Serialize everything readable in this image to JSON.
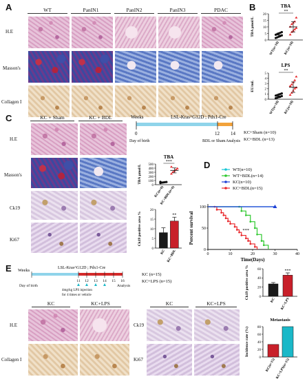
{
  "panel_letters": {
    "a": "A",
    "b": "B",
    "c": "C",
    "d": "D",
    "e": "E"
  },
  "panel_a": {
    "columns": [
      "WT",
      "PanIN1",
      "PanIN2",
      "PanIN3",
      "PDAC"
    ],
    "rows": [
      "H.E",
      "Masson's",
      "Collagen I"
    ]
  },
  "panel_c": {
    "columns": [
      "KC + Sham",
      "KC + BDL"
    ],
    "rows": [
      "H.E",
      "Masson's",
      "Ck19",
      "Ki67"
    ],
    "timeline": {
      "weeks": "Weeks",
      "strain": "LSL-Kras^G12D ; Pdx1-Cre",
      "t0": "0",
      "t12": "12",
      "t14": "14",
      "day_of_birth": "Day of birth",
      "bdl_or_sham": "BDL or Sham",
      "analysis": "Analysis",
      "group1": "KC+Sham (n=10)",
      "group2": "KC+BDL (n=13)"
    }
  },
  "panel_e": {
    "timeline": {
      "weeks": "Weeks",
      "strain": "LSL-Kras^G12D ; Pdx1-Cre",
      "ticks": [
        "11",
        "12",
        "13",
        "14",
        "15",
        "16"
      ],
      "day_of_birth": "Day of birth",
      "lps_line1": "4mg/kg LPS injection",
      "lps_line2": "for 4 times or vehicle",
      "analysis": "Analysis",
      "group1": "KC (n=15)",
      "group2": "KC+LPS (n=15)"
    },
    "left_columns": [
      "KC",
      "KC+LPS"
    ],
    "left_rows": [
      "H.E",
      "Collagen I"
    ],
    "right_columns": [
      "KC",
      "KC+LPS"
    ],
    "right_rows": [
      "Ck19",
      "Ki67"
    ]
  },
  "colors": {
    "red": "#e8262a",
    "green": "#2ec82e",
    "cyan": "#17c6d6",
    "blue": "#1d3fd6",
    "bar_black": "#1a1a1a",
    "bar_red": "#c8202a",
    "bar_cyan": "#1ab8c8"
  },
  "chart_data": [
    {
      "type": "scatter",
      "id": "B-TBA",
      "title": "TBA",
      "ylabel": "TBA μmol/L",
      "categories": [
        "WT(n=10)",
        "KC(n=10)"
      ],
      "significance": "**",
      "ylim": [
        0,
        20
      ],
      "yticks": [
        "0",
        "5",
        "10",
        "15",
        "20"
      ],
      "series": [
        {
          "values": [
            1.5,
            2,
            2.5,
            3,
            3.5,
            4,
            4.5,
            5,
            5.5,
            6
          ]
        },
        {
          "values": [
            4,
            6,
            7,
            8,
            9,
            10,
            12,
            13,
            14,
            17
          ]
        }
      ],
      "mean": [
        3.8,
        10
      ],
      "sd": [
        1.5,
        4
      ]
    },
    {
      "type": "scatter",
      "id": "B-LPS",
      "title": "LPS",
      "ylabel": "EU/mL",
      "categories": [
        "WT(n=10)",
        "KC(n=10)"
      ],
      "significance": "**",
      "ylim": [
        0,
        5
      ],
      "yticks": [
        "0",
        "1",
        "2",
        "3",
        "4",
        "5"
      ],
      "series": [
        {
          "values": [
            0.2,
            0.3,
            0.4,
            0.5,
            0.6,
            0.7,
            0.8,
            0.9,
            1.0,
            1.1
          ]
        },
        {
          "values": [
            0.8,
            1.2,
            1.6,
            2.0,
            2.2,
            2.5,
            2.8,
            3.2,
            3.6,
            4.3
          ]
        }
      ],
      "mean": [
        0.6,
        2.3
      ],
      "sd": [
        0.3,
        1
      ]
    },
    {
      "type": "scatter",
      "id": "C-TBA",
      "title": "TBA",
      "ylabel": "TBA μmol/L",
      "categories": [
        "KC(n=6)",
        "KC+BDL(n=6)"
      ],
      "significance": "***",
      "ylim": [
        0,
        500
      ],
      "yticks": [
        "0",
        "100",
        "200",
        "300",
        "400",
        "500"
      ],
      "series": [
        {
          "values": [
            40,
            50,
            55,
            60,
            65,
            70
          ]
        },
        {
          "values": [
            260,
            300,
            330,
            360,
            390,
            430
          ]
        }
      ],
      "mean": [
        57,
        345
      ],
      "sd": [
        10,
        60
      ]
    },
    {
      "type": "bar",
      "id": "C-Ck19",
      "ylabel": "Ck19 positive area %",
      "categories": [
        "KC",
        "KC+BDL"
      ],
      "values": [
        8,
        14
      ],
      "errors": [
        2.5,
        2
      ],
      "significance": "**",
      "ylim": [
        0,
        20
      ],
      "yticks": [
        "0",
        "5",
        "10",
        "15",
        "20"
      ]
    },
    {
      "type": "line",
      "id": "D-survival",
      "xlabel": "Time(Days)",
      "ylabel": "Percent survival",
      "xlim": [
        0,
        40
      ],
      "ylim": [
        0,
        100
      ],
      "xticks": [
        "0",
        "10",
        "20",
        "30",
        "40"
      ],
      "yticks": [
        "0",
        "50",
        "100"
      ],
      "significance": "***",
      "series": [
        {
          "name": "WT(n=10)",
          "color": "#17c6d6",
          "points": [
            [
              0,
              100
            ],
            [
              30,
              100
            ]
          ]
        },
        {
          "name": "WT+BDL(n=14)",
          "color": "#2ec82e",
          "points": [
            [
              0,
              100
            ],
            [
              14,
              100
            ],
            [
              15,
              90
            ],
            [
              17,
              80
            ],
            [
              19,
              65
            ],
            [
              21,
              50
            ],
            [
              22,
              35
            ],
            [
              24,
              20
            ],
            [
              25,
              10
            ],
            [
              27,
              0
            ]
          ]
        },
        {
          "name": "KC(n=10)",
          "color": "#1d3fd6",
          "points": [
            [
              0,
              100
            ],
            [
              30,
              100
            ]
          ]
        },
        {
          "name": "KC+BDL(n=15)",
          "color": "#e8262a",
          "points": [
            [
              0,
              100
            ],
            [
              3,
              100
            ],
            [
              4,
              93
            ],
            [
              6,
              86
            ],
            [
              7,
              80
            ],
            [
              8,
              73
            ],
            [
              9,
              66
            ],
            [
              10,
              60
            ],
            [
              12,
              53
            ],
            [
              13,
              46
            ],
            [
              14,
              40
            ],
            [
              15,
              33
            ],
            [
              17,
              26
            ],
            [
              18,
              20
            ],
            [
              19,
              13
            ],
            [
              21,
              6
            ],
            [
              22,
              0
            ]
          ]
        }
      ]
    },
    {
      "type": "bar",
      "id": "E-Ck19",
      "ylabel": "Ck19 positive area %",
      "categories": [
        "KC",
        "KC+LPS"
      ],
      "values": [
        27,
        46
      ],
      "errors": [
        3,
        5
      ],
      "significance": "***",
      "ylim": [
        0,
        60
      ],
      "yticks": [
        "0",
        "20",
        "40",
        "60"
      ]
    },
    {
      "type": "bar",
      "id": "E-metastasis",
      "title": "Metastasis",
      "ylabel": "Incidence rate (%)",
      "categories": [
        "KC(n=15)",
        "KC+LPS(n=15)"
      ],
      "values": [
        33,
        80
      ],
      "ylim": [
        0,
        80
      ],
      "yticks": [
        "0",
        "20",
        "40",
        "60",
        "80"
      ]
    }
  ]
}
